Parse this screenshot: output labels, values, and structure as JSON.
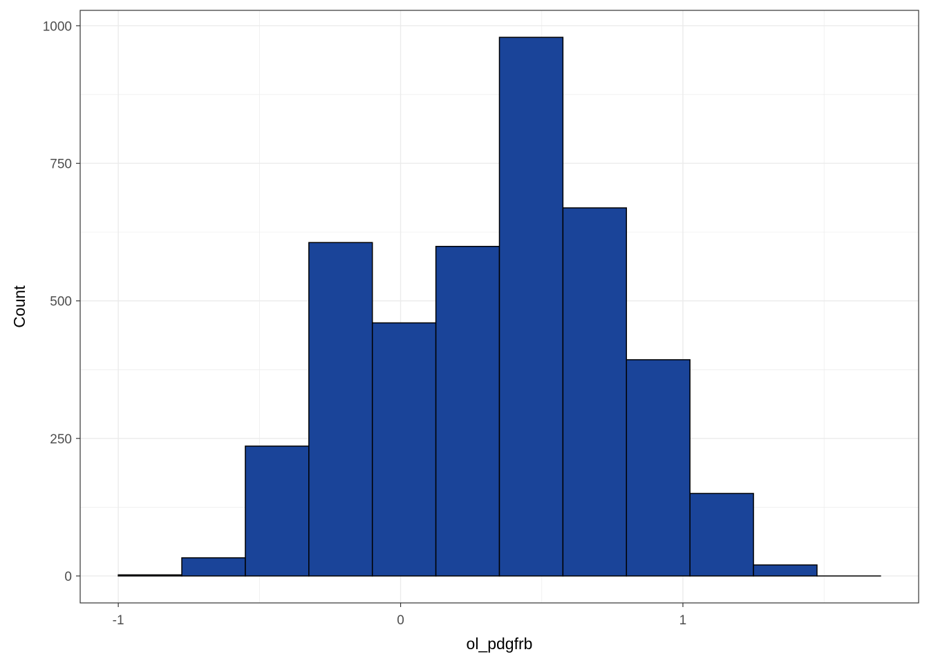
{
  "chart_data": {
    "type": "bar",
    "subtype": "histogram",
    "title": "",
    "xlabel": "ol_pdgfrb",
    "ylabel": "Count",
    "bins": [
      {
        "x0": -1.0,
        "x1": -0.775,
        "count": 2
      },
      {
        "x0": -0.775,
        "x1": -0.55,
        "count": 33
      },
      {
        "x0": -0.55,
        "x1": -0.325,
        "count": 236
      },
      {
        "x0": -0.325,
        "x1": -0.1,
        "count": 606
      },
      {
        "x0": -0.1,
        "x1": 0.125,
        "count": 460
      },
      {
        "x0": 0.125,
        "x1": 0.35,
        "count": 599
      },
      {
        "x0": 0.35,
        "x1": 0.575,
        "count": 979
      },
      {
        "x0": 0.575,
        "x1": 0.8,
        "count": 669
      },
      {
        "x0": 0.8,
        "x1": 1.025,
        "count": 393
      },
      {
        "x0": 1.025,
        "x1": 1.25,
        "count": 150
      },
      {
        "x0": 1.25,
        "x1": 1.475,
        "count": 20
      },
      {
        "x0": 1.475,
        "x1": 1.7,
        "count": 0
      }
    ],
    "x_ticks": [
      {
        "value": -1,
        "label": "-1"
      },
      {
        "value": 0,
        "label": "0"
      },
      {
        "value": 1,
        "label": "1"
      }
    ],
    "y_ticks": [
      {
        "value": 0,
        "label": "0"
      },
      {
        "value": 250,
        "label": "250"
      },
      {
        "value": 500,
        "label": "500"
      },
      {
        "value": 750,
        "label": "750"
      },
      {
        "value": 1000,
        "label": "1000"
      }
    ],
    "xlim": [
      -1.135,
      1.835
    ],
    "ylim": [
      -49,
      1028
    ],
    "grid": true,
    "legend": "none",
    "colors": {
      "bar_fill": "#1A4499",
      "bar_stroke": "#000000",
      "grid": "#EBEBEB",
      "panel_border": "#333333"
    }
  }
}
